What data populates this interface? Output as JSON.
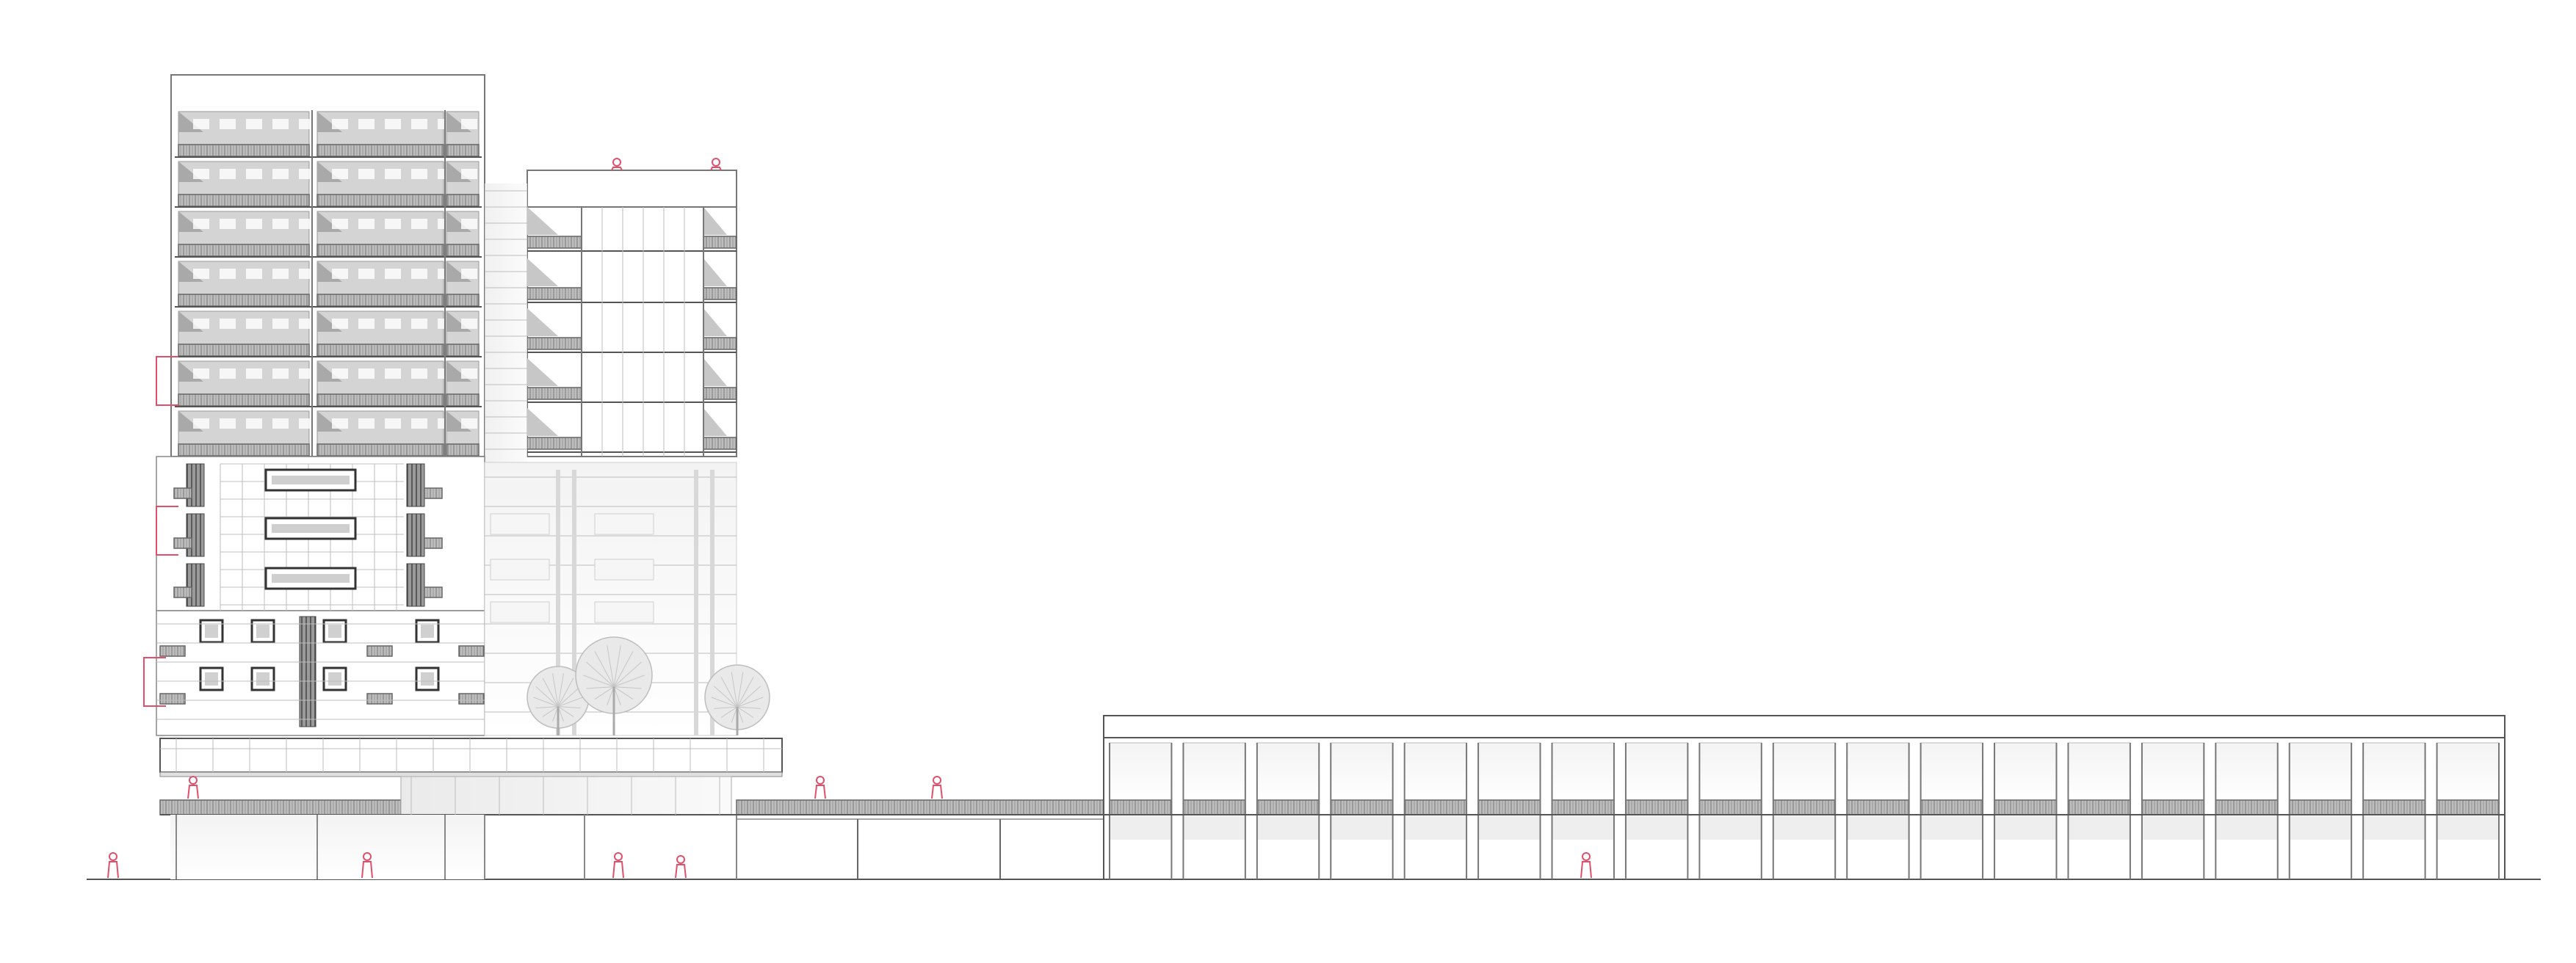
{
  "drawing": {
    "type": "architectural-elevation",
    "annotations_color": "#e0506a",
    "line_color": "#8a8a8a",
    "background": "#ffffff"
  }
}
